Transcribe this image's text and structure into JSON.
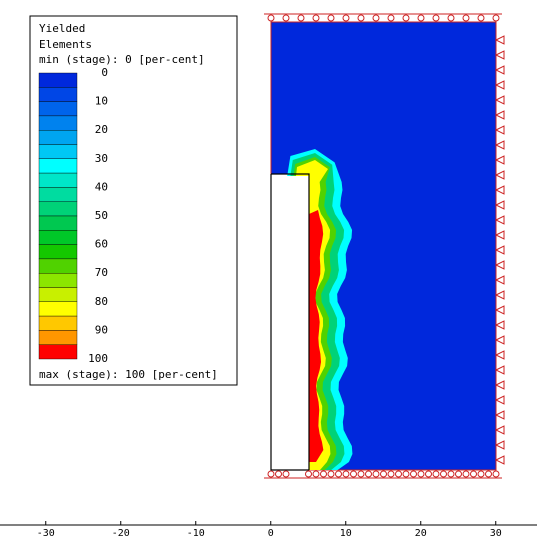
{
  "chart_data": {
    "type": "contour",
    "title": [
      "Yielded",
      "Elements"
    ],
    "min_label": "min (stage): 0 [per-cent]",
    "max_label": "max (stage): 100 [per-cent]",
    "levels": [
      0,
      5,
      10,
      15,
      20,
      25,
      30,
      35,
      40,
      45,
      50,
      55,
      60,
      65,
      70,
      75,
      80,
      85,
      90,
      95,
      100
    ],
    "colors": [
      "#0028dc",
      "#0046e6",
      "#0064eb",
      "#0082ee",
      "#00a5f0",
      "#00c8f5",
      "#00ffff",
      "#00e6c8",
      "#00dca0",
      "#00d278",
      "#00c850",
      "#00c828",
      "#14c800",
      "#50d200",
      "#8ce600",
      "#c8f000",
      "#ffff00",
      "#ffc800",
      "#ff9600",
      "#ff6400"
    ],
    "max_color": "#ff0000",
    "legend_ticks": [
      0,
      10,
      20,
      30,
      40,
      50,
      60,
      70,
      80,
      90,
      100
    ],
    "zones": [
      30,
      45,
      65,
      80,
      100
    ],
    "xlim": [
      -36.1,
      35.5
    ],
    "xticks": [
      -30,
      -20,
      -10,
      0,
      10,
      20,
      30
    ]
  }
}
